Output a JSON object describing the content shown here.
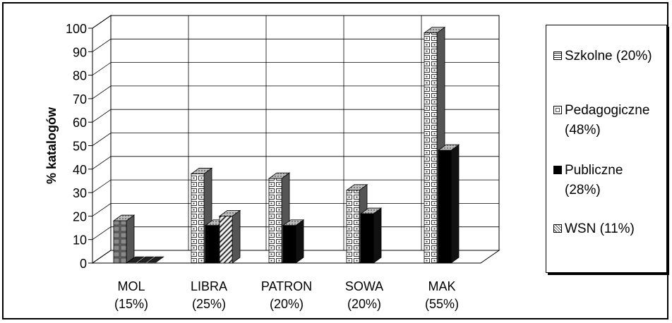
{
  "chart_data": {
    "type": "bar",
    "ylabel": "% katalogów",
    "ylim": [
      0,
      100
    ],
    "yticks": [
      0,
      10,
      20,
      30,
      40,
      50,
      60,
      70,
      80,
      90,
      100
    ],
    "grid": true,
    "legend_position": "right",
    "categories": [
      {
        "name": "MOL",
        "share": "(15%)"
      },
      {
        "name": "LIBRA",
        "share": "(25%)"
      },
      {
        "name": "PATRON",
        "share": "(20%)"
      },
      {
        "name": "SOWA",
        "share": "(20%)"
      },
      {
        "name": "MAK",
        "share": "(55%)"
      }
    ],
    "series": [
      {
        "name": "Szkolne (20%)",
        "legend_lines": [
          "Szkolne (20%)"
        ],
        "pattern": "grid-gray",
        "values": [
          18,
          0,
          0,
          0,
          0
        ]
      },
      {
        "name": "Pedagogiczne (48%)",
        "legend_lines": [
          "Pedagogiczne",
          "(48%)"
        ],
        "pattern": "white-boxes",
        "values": [
          0,
          38,
          36,
          31,
          98
        ]
      },
      {
        "name": "Publiczne (28%)",
        "legend_lines": [
          "Publiczne",
          "(28%)"
        ],
        "pattern": "solid-black",
        "values": [
          0,
          16,
          16,
          21,
          48
        ]
      },
      {
        "name": "WSN  (11%)",
        "legend_lines": [
          "WSN  (11%)"
        ],
        "pattern": "hatched",
        "values": [
          0,
          20,
          0,
          0,
          0
        ]
      }
    ]
  }
}
